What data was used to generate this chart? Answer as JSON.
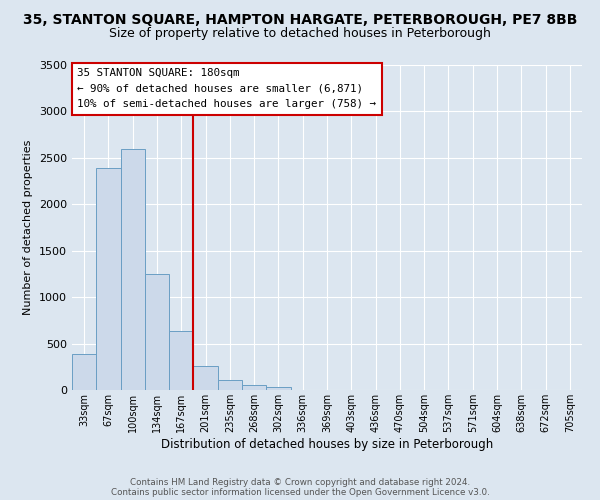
{
  "title": "35, STANTON SQUARE, HAMPTON HARGATE, PETERBOROUGH, PE7 8BB",
  "subtitle": "Size of property relative to detached houses in Peterborough",
  "xlabel": "Distribution of detached houses by size in Peterborough",
  "ylabel": "Number of detached properties",
  "bar_color": "#ccd9ea",
  "bar_edge_color": "#6a9ec4",
  "bg_color": "#dce6f0",
  "grid_color": "#ffffff",
  "annotation_box_text": "35 STANTON SQUARE: 180sqm\n← 90% of detached houses are smaller (6,871)\n10% of semi-detached houses are larger (758) →",
  "vline_color": "#cc0000",
  "categories": [
    "33sqm",
    "67sqm",
    "100sqm",
    "134sqm",
    "167sqm",
    "201sqm",
    "235sqm",
    "268sqm",
    "302sqm",
    "336sqm",
    "369sqm",
    "403sqm",
    "436sqm",
    "470sqm",
    "504sqm",
    "537sqm",
    "571sqm",
    "604sqm",
    "638sqm",
    "672sqm",
    "705sqm"
  ],
  "values": [
    390,
    2390,
    2600,
    1250,
    640,
    260,
    105,
    55,
    35,
    0,
    0,
    0,
    0,
    0,
    0,
    0,
    0,
    0,
    0,
    0,
    0
  ],
  "ylim": [
    0,
    3500
  ],
  "yticks": [
    0,
    500,
    1000,
    1500,
    2000,
    2500,
    3000,
    3500
  ],
  "vline_pos": 5,
  "footer1": "Contains HM Land Registry data © Crown copyright and database right 2024.",
  "footer2": "Contains public sector information licensed under the Open Government Licence v3.0.",
  "title_fontsize": 10,
  "subtitle_fontsize": 9
}
